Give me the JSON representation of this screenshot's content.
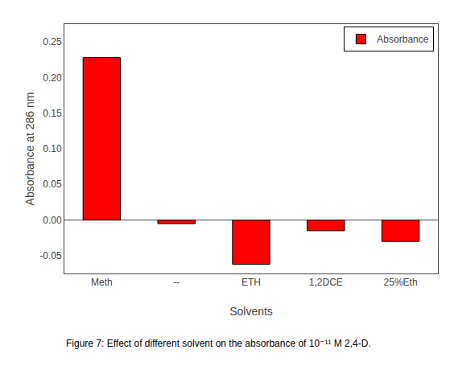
{
  "chart_data": {
    "type": "bar",
    "categories": [
      "Meth",
      "--",
      "ETH",
      "1,2DCE",
      "25%Eth"
    ],
    "series": [
      {
        "name": "Absorbance",
        "color": "#ff0000",
        "values": [
          0.228,
          -0.005,
          -0.062,
          -0.015,
          -0.03
        ]
      }
    ],
    "xlabel": "Solvents",
    "ylabel": "Absorbance at 286 nm",
    "ylim": [
      -0.075,
      0.275
    ],
    "yticks": [
      -0.05,
      {
        "value": 0.0,
        "label": "0.00"
      },
      0.05,
      {
        "value": 0.1,
        "label": "0.10"
      },
      0.15,
      {
        "value": 0.2,
        "label": "0.20"
      },
      0.25
    ],
    "grid": false,
    "legend": "upper right",
    "annotations": [
      "Figure 7: Effect of different solvent on the absorbance of 10⁻¹¹ M 2,4-D."
    ]
  }
}
